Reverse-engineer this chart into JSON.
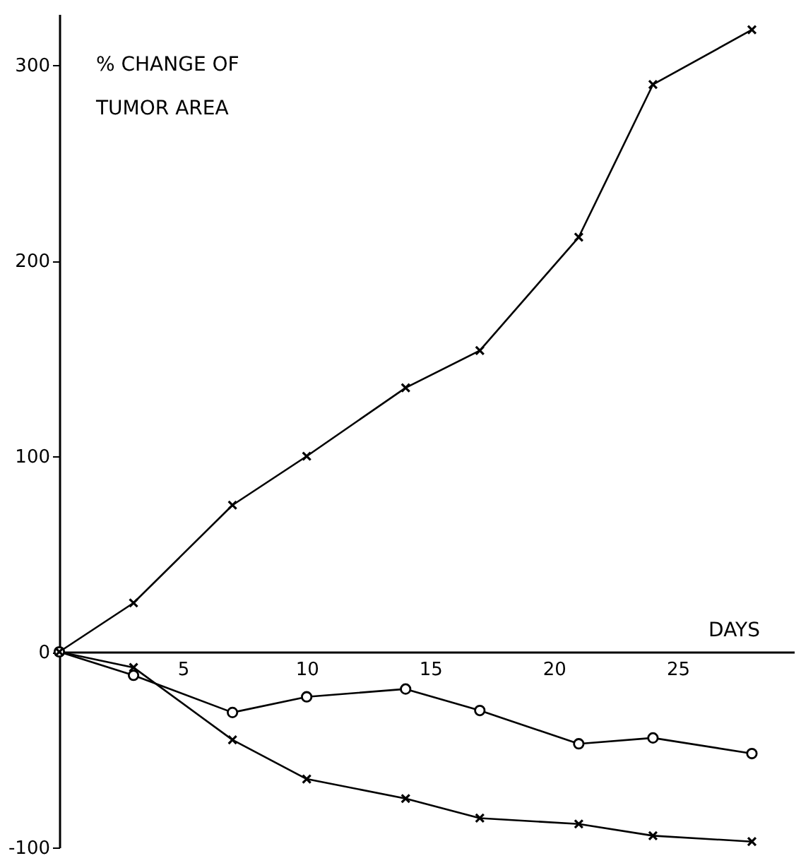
{
  "chart_data": {
    "type": "line",
    "ylabel": "% CHANGE OF TUMOR AREA",
    "xlabel": "DAYS",
    "x": [
      0,
      3,
      7,
      10,
      14,
      17,
      21,
      24,
      28
    ],
    "series": [
      {
        "color": "#000000",
        "marker": "cross",
        "values": [
          0,
          25,
          75,
          100,
          135,
          154,
          212,
          290,
          318
        ]
      },
      {
        "color": "#000000",
        "marker": "circle",
        "values": [
          0,
          -12,
          -31,
          -23,
          -19,
          -30,
          -47,
          -44,
          -52
        ]
      },
      {
        "color": "#000000",
        "marker": "cross",
        "values": [
          0,
          -8,
          -45,
          -65,
          -75,
          -85,
          -88,
          -94,
          -97
        ]
      }
    ],
    "xlim": [
      0,
      29.7
    ],
    "ylim": [
      -100,
      326
    ],
    "xticks": [
      5,
      10,
      15,
      20,
      25
    ],
    "yticks": [
      -100,
      0,
      100,
      200,
      300
    ],
    "grid": false
  }
}
